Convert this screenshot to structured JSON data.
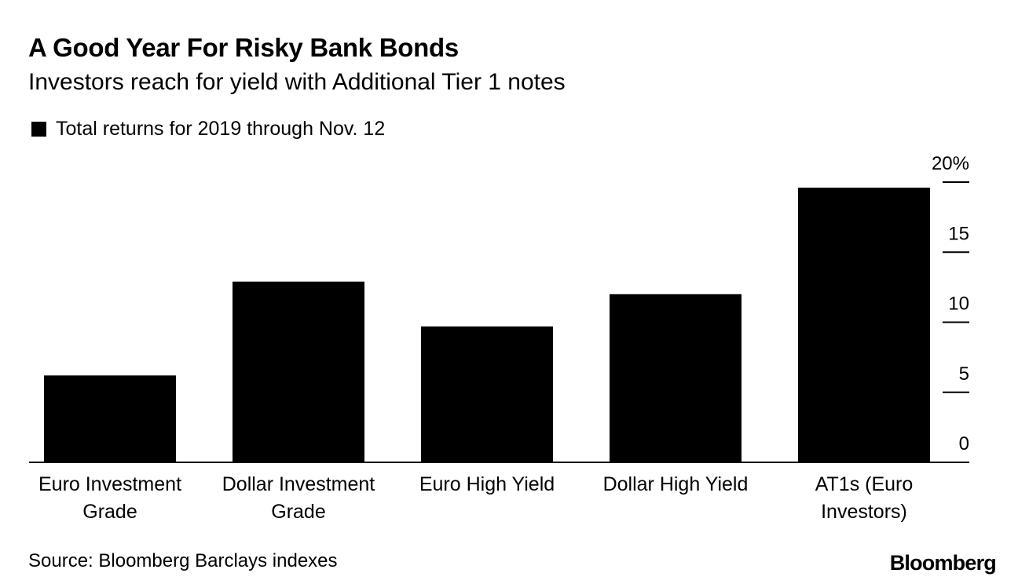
{
  "header": {
    "title": "A Good Year For Risky Bank Bonds",
    "subtitle": "Investors reach for yield with Additional Tier 1 notes"
  },
  "legend": {
    "label": "Total returns for 2019 through Nov. 12"
  },
  "footer": {
    "source": "Source: Bloomberg Barclays indexes",
    "brand": "Bloomberg"
  },
  "colors": {
    "bar": "#000000",
    "background": "#ffffff",
    "text": "#000000"
  },
  "chart_data": {
    "type": "bar",
    "title": "A Good Year For Risky Bank Bonds",
    "subtitle": "Investors reach for yield with Additional Tier 1 notes",
    "categories": [
      [
        "Euro Investment",
        "Grade"
      ],
      [
        "Dollar Investment",
        "Grade"
      ],
      [
        "Euro High Yield"
      ],
      [
        "Dollar High Yield"
      ],
      [
        "AT1s (Euro",
        "Investors)"
      ]
    ],
    "series": [
      {
        "name": "Total returns for 2019 through Nov. 12",
        "values": [
          6.2,
          12.9,
          9.7,
          12.0,
          19.6
        ]
      }
    ],
    "xlabel": "",
    "ylabel": "",
    "ylim": [
      0,
      20
    ],
    "yticks": [
      0,
      5,
      10,
      15,
      20
    ],
    "ytick_labels": [
      "0",
      "5",
      "10",
      "15",
      "20%"
    ],
    "y_axis_side": "right",
    "grid": false,
    "legend_position": "top-left"
  }
}
